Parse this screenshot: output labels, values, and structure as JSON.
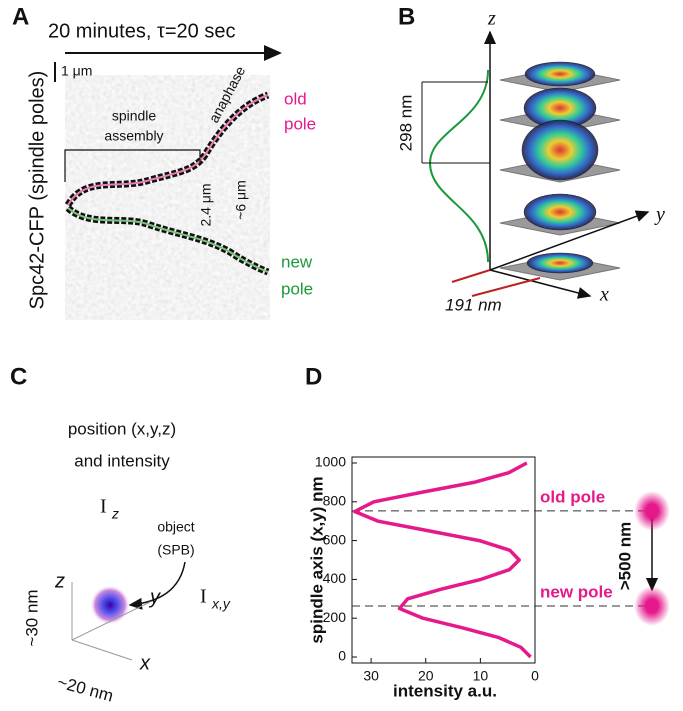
{
  "panel_a": {
    "letter": "A",
    "title": "20 minutes, τ=20 sec",
    "scale_bar": "1 μm",
    "y_label": "Spc42-CFP (spindle poles)",
    "phase_1": [
      "spindle",
      "assembly"
    ],
    "phase_2": "anaphase",
    "old_pole": [
      "old",
      "pole"
    ],
    "new_pole": [
      "new",
      "pole"
    ],
    "distance_1": "2.4 μm",
    "distance_2": "~6 μm"
  },
  "panel_b": {
    "letter": "B",
    "axis_z": "z",
    "axis_y": "y",
    "axis_x": "x",
    "height": "298 nm",
    "width": "191 nm"
  },
  "panel_c": {
    "letter": "C",
    "caption": [
      "position (x,y,z)",
      "and intensity"
    ],
    "iz": "I",
    "iz_sub": "z",
    "object": [
      "object",
      "(SPB)"
    ],
    "axis_z": "z",
    "axis_y": "y",
    "axis_x": "x",
    "size_z": "~30 nm",
    "size_xy": "~20 nm",
    "ixy": "I",
    "ixy_sub": "x,y"
  },
  "chart_data": {
    "type": "line",
    "letter": "D",
    "xlabel": "intensity a.u.",
    "ylabel": "spindle axis (x,y) nm",
    "x": [
      0.8,
      2.6,
      6.6,
      13.2,
      20.5,
      24.8,
      23.3,
      17.1,
      9.9,
      4.7,
      2.9,
      4.6,
      10.2,
      19.4,
      28.7,
      33,
      29.5,
      20.6,
      11.2,
      4.8,
      1.5
    ],
    "series": [
      {
        "color": "#e5198b",
        "values": [
          0,
          50,
          100,
          150,
          200,
          250,
          300,
          350,
          400,
          450,
          500,
          550,
          600,
          650,
          700,
          750,
          800,
          850,
          900,
          950,
          1000
        ]
      }
    ],
    "xlim": [
      33.5,
      0
    ],
    "ylim": [
      0,
      1000
    ],
    "xticks": [
      30,
      20,
      10,
      0
    ],
    "yticks": [
      0,
      200,
      400,
      600,
      800,
      1000
    ],
    "hlines": [
      753,
      263
    ],
    "annotations": [
      "old pole",
      "new pole",
      ">500 nm"
    ]
  }
}
